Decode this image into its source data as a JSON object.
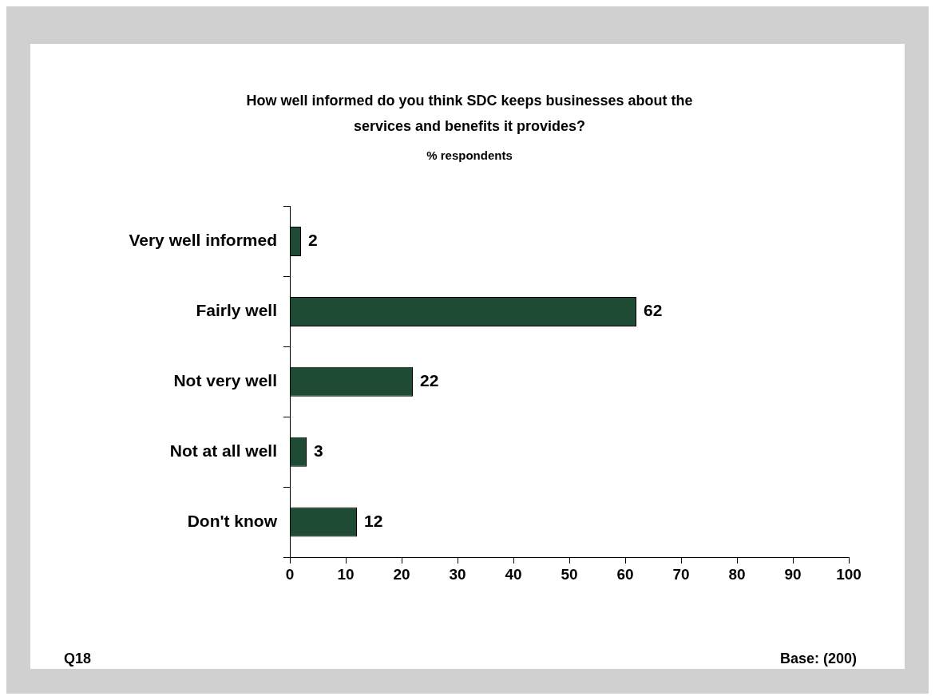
{
  "chart_data": {
    "type": "bar",
    "orientation": "horizontal",
    "title": "How well informed do you think SDC keeps businesses about the services and benefits it provides?",
    "subtitle": "% respondents",
    "categories": [
      "Very well informed",
      "Fairly well",
      "Not very well",
      "Not at all well",
      "Don't know"
    ],
    "values": [
      2,
      62,
      22,
      3,
      12
    ],
    "color": "#1f4a33",
    "xlim": [
      0,
      100
    ],
    "xticks": [
      0,
      10,
      20,
      30,
      40,
      50,
      60,
      70,
      80,
      90,
      100
    ],
    "grid": false,
    "legend": false,
    "data_labels": true,
    "annotations": [
      "Q18",
      "Base: (200)"
    ]
  }
}
